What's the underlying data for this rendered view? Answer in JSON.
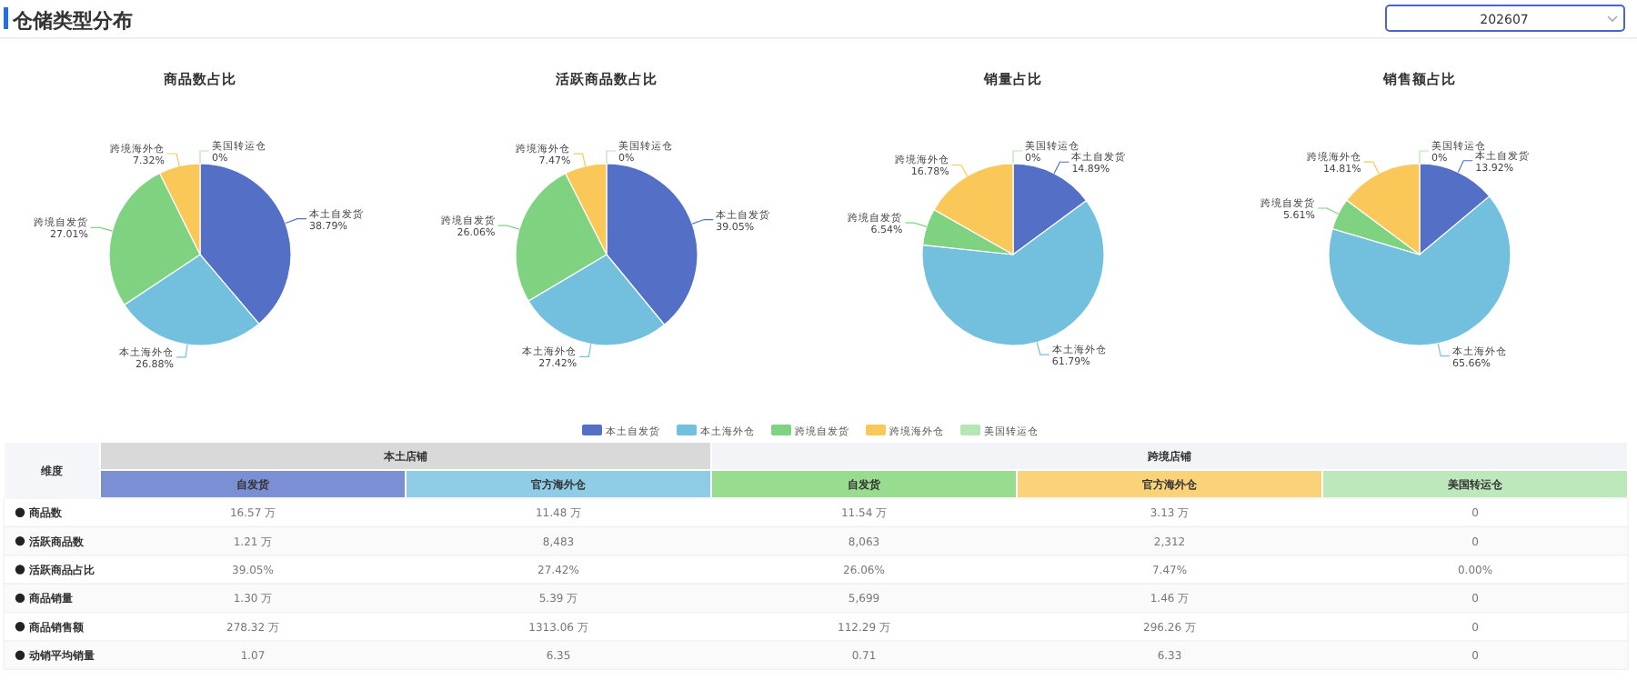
{
  "chart_data": [
    {
      "type": "other",
      "title": "仓储类型分布",
      "annotations": [
        "202607"
      ]
    },
    {
      "type": "pie",
      "title": "商品数占比",
      "categories": [
        "本土自发货",
        "本土海外仓",
        "跨境自发货",
        "跨境海外仓",
        "美国转运仓"
      ],
      "values": [
        38.79,
        26.88,
        27.01,
        7.32,
        0
      ],
      "colors": [
        "#5470c6",
        "#73c0de",
        "#7fd27f",
        "#fac858",
        "#b5e6b3"
      ],
      "value_labels": [
        "38.79%",
        "26.88%",
        "27.01%",
        "7.32%",
        "0%"
      ],
      "legend": "bottom"
    },
    {
      "type": "pie",
      "title": "活跃商品数占比",
      "categories": [
        "本土自发货",
        "本土海外仓",
        "跨境自发货",
        "跨境海外仓",
        "美国转运仓"
      ],
      "values": [
        39.05,
        27.42,
        26.06,
        7.47,
        0
      ],
      "colors": [
        "#5470c6",
        "#73c0de",
        "#7fd27f",
        "#fac858",
        "#b5e6b3"
      ],
      "value_labels": [
        "39.05%",
        "27.42%",
        "26.06%",
        "7.47%",
        "0%"
      ]
    },
    {
      "type": "pie",
      "title": "销量占比",
      "categories": [
        "本土自发货",
        "本土海外仓",
        "跨境自发货",
        "跨境海外仓",
        "美国转运仓"
      ],
      "values": [
        14.89,
        61.79,
        6.54,
        16.78,
        0
      ],
      "colors": [
        "#5470c6",
        "#73c0de",
        "#7fd27f",
        "#fac858",
        "#b5e6b3"
      ],
      "value_labels": [
        "14.89%",
        "61.79%",
        "6.54%",
        "16.78%",
        "0%"
      ]
    },
    {
      "type": "pie",
      "title": "销售额占比",
      "categories": [
        "本土自发货",
        "本土海外仓",
        "跨境自发货",
        "跨境海外仓",
        "美国转运仓"
      ],
      "values": [
        13.92,
        65.66,
        5.61,
        14.81,
        0
      ],
      "colors": [
        "#5470c6",
        "#73c0de",
        "#7fd27f",
        "#fac858",
        "#b5e6b3"
      ],
      "value_labels": [
        "13.92%",
        "65.66%",
        "5.61%",
        "14.81%",
        "0%"
      ]
    },
    {
      "type": "other",
      "annotations": [
        "维度",
        "本土店铺",
        "跨境店铺"
      ],
      "categories": [
        "自发货",
        "官方海外仓",
        "自发货",
        "官方海外仓",
        "美国转运仓"
      ],
      "colors": [
        "#7b8fd4",
        "#8fcde6",
        "#98dc8f",
        "#fad27a",
        "#bde8bb"
      ],
      "y_categories": [
        "商品数",
        "活跃商品数",
        "活跃商品占比",
        "商品销量",
        "商品销售额",
        "动销平均销量"
      ],
      "cell_labels": [
        [
          "16.57 万",
          "11.48 万",
          "11.54 万",
          "3.13 万",
          "0"
        ],
        [
          "1.21 万",
          "8,483",
          "8,063",
          "2,312",
          "0"
        ],
        [
          "39.05%",
          "27.42%",
          "26.06%",
          "7.47%",
          "0.00%"
        ],
        [
          "1.30 万",
          "5.39 万",
          "5,699",
          "1.46 万",
          "0"
        ],
        [
          "278.32 万",
          "1313.06 万",
          "112.29 万",
          "296.26 万",
          "0"
        ],
        [
          "1.07",
          "6.35",
          "0.71",
          "6.33",
          "0"
        ]
      ]
    }
  ]
}
